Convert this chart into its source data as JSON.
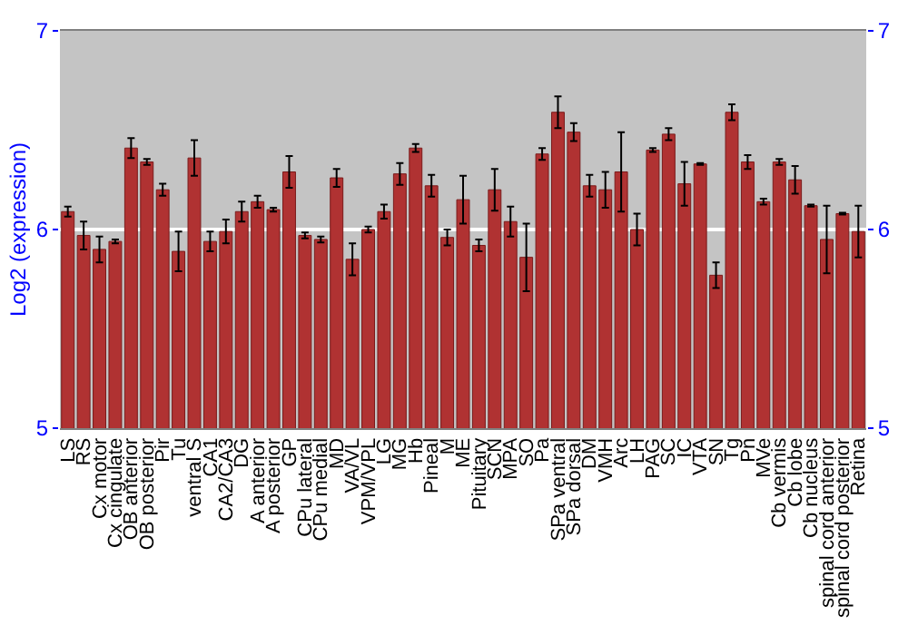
{
  "chart_data": {
    "type": "bar",
    "ylabel": "Log2 (expression)",
    "categories": [
      "LS",
      "RS",
      "Cx motor",
      "Cx cingulate",
      "OB anterior",
      "OB posterior",
      "Pir",
      "Tu",
      "ventral S",
      "CA1",
      "CA2/CA3",
      "DG",
      "A anterior",
      "A posterior",
      "GP",
      "CPu lateral",
      "CPu medial",
      "MD",
      "VA/VL",
      "VPM/VPL",
      "LG",
      "MG",
      "Hb",
      "Pineal",
      "M",
      "ME",
      "Pituitary",
      "SCN",
      "MPA",
      "SO",
      "Pa",
      "SPa ventral",
      "SPa dorsal",
      "DM",
      "VMH",
      "Arc",
      "LH",
      "PAG",
      "SC",
      "IC",
      "VTA",
      "SN",
      "Tg",
      "Pn",
      "MVe",
      "Cb vermis",
      "Cb lobe",
      "Cb nucleus",
      "spinal cord anterior",
      "spinal cord posterior",
      "Retina"
    ],
    "values": [
      6.09,
      5.97,
      5.9,
      5.94,
      6.41,
      6.34,
      6.2,
      5.89,
      6.36,
      5.94,
      5.99,
      6.09,
      6.14,
      6.1,
      6.29,
      5.97,
      5.95,
      6.26,
      5.85,
      6.0,
      6.09,
      6.28,
      6.41,
      6.22,
      5.96,
      6.15,
      5.92,
      6.2,
      6.04,
      5.86,
      6.38,
      6.59,
      6.49,
      6.22,
      6.2,
      6.29,
      6.0,
      6.4,
      6.48,
      6.23,
      6.33,
      5.77,
      6.59,
      6.34,
      6.14,
      6.34,
      6.25,
      6.12,
      5.95,
      6.08,
      5.99
    ],
    "errors": [
      0.025,
      0.07,
      0.065,
      0.01,
      0.05,
      0.015,
      0.03,
      0.1,
      0.09,
      0.05,
      0.06,
      0.05,
      0.03,
      0.01,
      0.08,
      0.015,
      0.015,
      0.045,
      0.08,
      0.015,
      0.035,
      0.055,
      0.02,
      0.055,
      0.04,
      0.12,
      0.03,
      0.105,
      0.075,
      0.17,
      0.03,
      0.08,
      0.045,
      0.055,
      0.09,
      0.2,
      0.08,
      0.01,
      0.03,
      0.11,
      0.005,
      0.065,
      0.04,
      0.035,
      0.015,
      0.015,
      0.07,
      0.005,
      0.17,
      0.005,
      0.13
    ],
    "color": "#b03232",
    "ylim": [
      5,
      7
    ],
    "yticks": [
      5,
      6,
      7
    ],
    "y2lim": [
      5,
      7
    ],
    "y2ticks": [
      5,
      6,
      7
    ],
    "grid": "y"
  }
}
